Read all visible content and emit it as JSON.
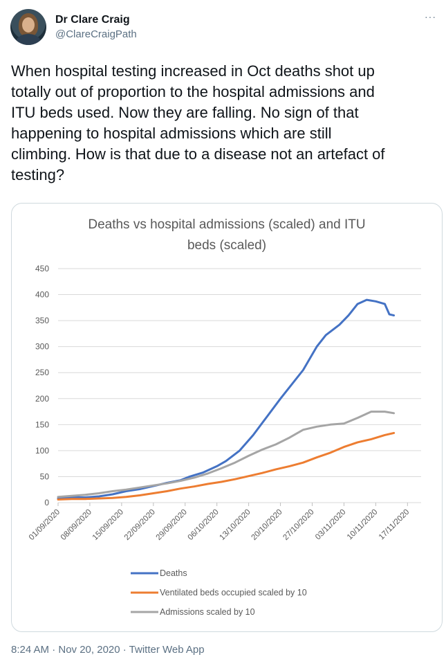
{
  "tweet": {
    "display_name": "Dr Clare Craig",
    "handle": "@ClareCraigPath",
    "more_icon": "···",
    "text": "When hospital testing increased in Oct deaths shot up\ntotally out of proportion to the hospital admissions and\nITU beds used. Now they are falling. No sign of that\nhappening to hospital admissions which are still\nclimbing. How is that due to a disease not an artefact of\ntesting?",
    "timestamp": "8:24 AM · Nov 20, 2020 · Twitter Web App"
  },
  "chart_data": {
    "type": "line",
    "title_lines": [
      "Deaths vs hospital admissions (scaled) and ITU",
      "beds (scaled)"
    ],
    "xlabel": "",
    "ylabel": "",
    "ylim": [
      0,
      450
    ],
    "yticks": [
      0,
      50,
      100,
      150,
      200,
      250,
      300,
      350,
      400,
      450
    ],
    "grid": true,
    "legend_position": "bottom-left",
    "x_tick_labels": [
      "01/09/2020",
      "08/09/2020",
      "15/09/2020",
      "22/09/2020",
      "29/09/2020",
      "06/10/2020",
      "13/10/2020",
      "20/10/2020",
      "27/10/2020",
      "03/11/2020",
      "10/11/2020",
      "17/11/2020"
    ],
    "x_tick_days": [
      0,
      7,
      14,
      21,
      28,
      35,
      42,
      49,
      56,
      63,
      70,
      77
    ],
    "series": [
      {
        "name": "Deaths",
        "color": "#4472c4",
        "x": [
          "01/09/2020",
          "04/09/2020",
          "07/09/2020",
          "10/09/2020",
          "13/09/2020",
          "16/09/2020",
          "19/09/2020",
          "22/09/2020",
          "25/09/2020",
          "28/09/2020",
          "30/09/2020",
          "03/10/2020",
          "06/10/2020",
          "08/10/2020",
          "11/10/2020",
          "14/10/2020",
          "17/10/2020",
          "20/10/2020",
          "22/10/2020",
          "25/10/2020",
          "28/10/2020",
          "30/10/2020",
          "02/11/2020",
          "04/11/2020",
          "06/11/2020",
          "08/11/2020",
          "10/11/2020",
          "12/11/2020",
          "13/11/2020",
          "14/11/2020"
        ],
        "values": [
          8,
          10,
          10,
          12,
          16,
          22,
          26,
          32,
          38,
          43,
          50,
          58,
          70,
          80,
          100,
          130,
          165,
          200,
          222,
          255,
          300,
          322,
          342,
          360,
          382,
          390,
          387,
          382,
          362,
          360
        ]
      },
      {
        "name": "Ventilated beds occupied scaled by 10",
        "color": "#ed7d31",
        "x": [
          "01/09/2020",
          "04/09/2020",
          "07/09/2020",
          "10/09/2020",
          "13/09/2020",
          "16/09/2020",
          "19/09/2020",
          "22/09/2020",
          "25/09/2020",
          "28/09/2020",
          "01/10/2020",
          "04/10/2020",
          "07/10/2020",
          "10/10/2020",
          "13/10/2020",
          "16/10/2020",
          "19/10/2020",
          "22/10/2020",
          "25/10/2020",
          "28/10/2020",
          "31/10/2020",
          "03/11/2020",
          "06/11/2020",
          "09/11/2020",
          "12/11/2020",
          "14/11/2020"
        ],
        "values": [
          6,
          7,
          7,
          8,
          9,
          11,
          14,
          18,
          22,
          27,
          31,
          36,
          40,
          45,
          51,
          57,
          64,
          70,
          77,
          87,
          96,
          107,
          116,
          122,
          130,
          134
        ]
      },
      {
        "name": "Admissions scaled by 10",
        "color": "#a5a5a5",
        "x": [
          "01/09/2020",
          "04/09/2020",
          "07/09/2020",
          "10/09/2020",
          "13/09/2020",
          "16/09/2020",
          "19/09/2020",
          "22/09/2020",
          "25/09/2020",
          "28/09/2020",
          "01/10/2020",
          "04/10/2020",
          "07/10/2020",
          "10/10/2020",
          "13/10/2020",
          "16/10/2020",
          "19/10/2020",
          "22/10/2020",
          "25/10/2020",
          "28/10/2020",
          "31/10/2020",
          "03/11/2020",
          "06/11/2020",
          "09/11/2020",
          "12/11/2020",
          "14/11/2020"
        ],
        "values": [
          11,
          13,
          15,
          18,
          22,
          25,
          29,
          33,
          37,
          42,
          48,
          56,
          66,
          77,
          90,
          102,
          112,
          125,
          140,
          146,
          150,
          152,
          163,
          175,
          175,
          172
        ]
      }
    ]
  }
}
